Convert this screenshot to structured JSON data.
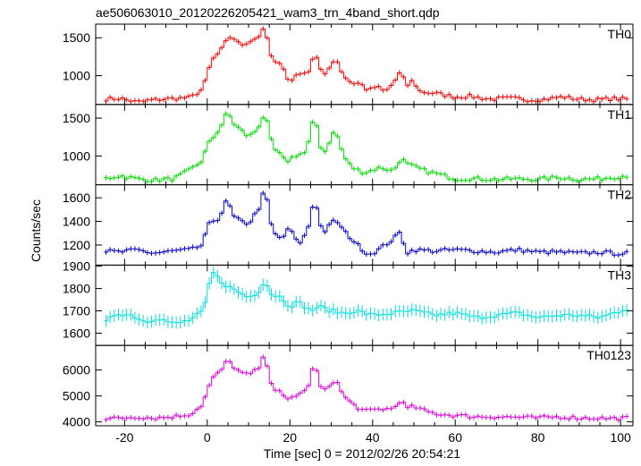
{
  "chart_data": {
    "type": "line",
    "title": "ae506063010_20120226205421_wam3_trn_4band_short.qdp",
    "xlabel": "Time [sec] 0 = 2012/02/26 20:54:21",
    "ylabel": "Counts/sec",
    "xlim": [
      -27,
      103
    ],
    "x_ticks": [
      -20,
      0,
      20,
      40,
      60,
      80,
      100
    ],
    "bin_width": 1,
    "panels": [
      {
        "name": "TH0",
        "color": "#ff0000",
        "ylim": [
          620,
          1680
        ],
        "y_ticks": [
          1000,
          1500
        ],
        "anchors": [
          [
            -25,
            690
          ],
          [
            -21,
            700
          ],
          [
            -17,
            650
          ],
          [
            -13,
            680
          ],
          [
            -8,
            700
          ],
          [
            -4,
            710
          ],
          [
            -1,
            830
          ],
          [
            0,
            1000
          ],
          [
            1,
            1200
          ],
          [
            2,
            1250
          ],
          [
            4,
            1380
          ],
          [
            5,
            1500
          ],
          [
            6,
            1520
          ],
          [
            8,
            1400
          ],
          [
            10,
            1450
          ],
          [
            12,
            1500
          ],
          [
            13,
            1550
          ],
          [
            14,
            1640
          ],
          [
            15,
            1350
          ],
          [
            16,
            1150
          ],
          [
            18,
            1200
          ],
          [
            19,
            1000
          ],
          [
            20,
            900
          ],
          [
            22,
            1050
          ],
          [
            24,
            1000
          ],
          [
            25,
            1150
          ],
          [
            26,
            1300
          ],
          [
            27,
            1200
          ],
          [
            28,
            950
          ],
          [
            30,
            1150
          ],
          [
            31,
            1250
          ],
          [
            33,
            1000
          ],
          [
            35,
            900
          ],
          [
            37,
            900
          ],
          [
            39,
            800
          ],
          [
            41,
            860
          ],
          [
            43,
            780
          ],
          [
            45,
            900
          ],
          [
            47,
            1070
          ],
          [
            48,
            850
          ],
          [
            50,
            950
          ],
          [
            51,
            800
          ],
          [
            53,
            780
          ],
          [
            56,
            760
          ],
          [
            60,
            720
          ],
          [
            64,
            730
          ],
          [
            68,
            690
          ],
          [
            72,
            700
          ],
          [
            75,
            700
          ],
          [
            78,
            680
          ],
          [
            82,
            690
          ],
          [
            86,
            720
          ],
          [
            90,
            690
          ],
          [
            95,
            680
          ],
          [
            98,
            700
          ],
          [
            101,
            690
          ]
        ],
        "bins": []
      },
      {
        "name": "TH1",
        "color": "#00dd00",
        "ylim": [
          620,
          1680
        ],
        "y_ticks": [
          1000,
          1500
        ],
        "anchors": [
          [
            -25,
            700
          ],
          [
            -21,
            740
          ],
          [
            -17,
            700
          ],
          [
            -13,
            680
          ],
          [
            -8,
            700
          ],
          [
            -4,
            820
          ],
          [
            -1,
            950
          ],
          [
            0,
            1150
          ],
          [
            1,
            1200
          ],
          [
            2,
            1300
          ],
          [
            3,
            1350
          ],
          [
            5,
            1600
          ],
          [
            6,
            1450
          ],
          [
            8,
            1350
          ],
          [
            10,
            1250
          ],
          [
            12,
            1350
          ],
          [
            13,
            1450
          ],
          [
            14,
            1580
          ],
          [
            15,
            1300
          ],
          [
            16,
            1100
          ],
          [
            18,
            1000
          ],
          [
            19,
            920
          ],
          [
            21,
            1000
          ],
          [
            24,
            1050
          ],
          [
            25,
            1300
          ],
          [
            26,
            1550
          ],
          [
            27,
            1250
          ],
          [
            28,
            1000
          ],
          [
            30,
            1250
          ],
          [
            31,
            1350
          ],
          [
            33,
            1000
          ],
          [
            35,
            850
          ],
          [
            38,
            780
          ],
          [
            42,
            850
          ],
          [
            45,
            800
          ],
          [
            47,
            980
          ],
          [
            48,
            900
          ],
          [
            50,
            860
          ],
          [
            53,
            800
          ],
          [
            56,
            760
          ],
          [
            60,
            700
          ],
          [
            65,
            700
          ],
          [
            70,
            690
          ],
          [
            75,
            700
          ],
          [
            80,
            690
          ],
          [
            85,
            720
          ],
          [
            90,
            690
          ],
          [
            95,
            700
          ],
          [
            98,
            720
          ],
          [
            101,
            740
          ]
        ],
        "bins": []
      },
      {
        "name": "TH2",
        "color": "#0000cc",
        "ylim": [
          1030,
          1710
        ],
        "y_ticks": [
          1200,
          1400,
          1600
        ],
        "anchors": [
          [
            -25,
            1150
          ],
          [
            -21,
            1140
          ],
          [
            -17,
            1160
          ],
          [
            -13,
            1130
          ],
          [
            -8,
            1150
          ],
          [
            -4,
            1160
          ],
          [
            -1,
            1200
          ],
          [
            0,
            1350
          ],
          [
            1,
            1400
          ],
          [
            3,
            1430
          ],
          [
            4,
            1520
          ],
          [
            5,
            1600
          ],
          [
            6,
            1450
          ],
          [
            8,
            1400
          ],
          [
            10,
            1380
          ],
          [
            12,
            1480
          ],
          [
            13,
            1550
          ],
          [
            14,
            1700
          ],
          [
            15,
            1450
          ],
          [
            16,
            1300
          ],
          [
            18,
            1250
          ],
          [
            20,
            1350
          ],
          [
            22,
            1200
          ],
          [
            24,
            1300
          ],
          [
            25,
            1420
          ],
          [
            26,
            1630
          ],
          [
            27,
            1420
          ],
          [
            28,
            1300
          ],
          [
            30,
            1380
          ],
          [
            31,
            1420
          ],
          [
            33,
            1320
          ],
          [
            35,
            1250
          ],
          [
            37,
            1180
          ],
          [
            39,
            1120
          ],
          [
            41,
            1150
          ],
          [
            43,
            1200
          ],
          [
            45,
            1250
          ],
          [
            47,
            1320
          ],
          [
            48,
            1130
          ],
          [
            50,
            1160
          ],
          [
            55,
            1150
          ],
          [
            60,
            1160
          ],
          [
            65,
            1150
          ],
          [
            70,
            1140
          ],
          [
            75,
            1160
          ],
          [
            80,
            1140
          ],
          [
            85,
            1140
          ],
          [
            90,
            1130
          ],
          [
            95,
            1140
          ],
          [
            98,
            1130
          ],
          [
            101,
            1130
          ]
        ],
        "bins": []
      },
      {
        "name": "TH3",
        "color": "#00e0e0",
        "ylim": [
          1545,
          1905
        ],
        "y_ticks": [
          1600,
          1700,
          1800,
          1900
        ],
        "anchors": [
          [
            -25,
            1640
          ],
          [
            -22,
            1690
          ],
          [
            -18,
            1680
          ],
          [
            -15,
            1650
          ],
          [
            -12,
            1670
          ],
          [
            -8,
            1640
          ],
          [
            -4,
            1660
          ],
          [
            -1,
            1700
          ],
          [
            0,
            1760
          ],
          [
            1,
            1880
          ],
          [
            2,
            1860
          ],
          [
            4,
            1820
          ],
          [
            6,
            1800
          ],
          [
            8,
            1780
          ],
          [
            10,
            1760
          ],
          [
            12,
            1780
          ],
          [
            13,
            1800
          ],
          [
            14,
            1850
          ],
          [
            15,
            1780
          ],
          [
            18,
            1760
          ],
          [
            20,
            1720
          ],
          [
            22,
            1740
          ],
          [
            25,
            1700
          ],
          [
            27,
            1720
          ],
          [
            30,
            1700
          ],
          [
            33,
            1690
          ],
          [
            36,
            1700
          ],
          [
            40,
            1680
          ],
          [
            45,
            1690
          ],
          [
            50,
            1700
          ],
          [
            55,
            1680
          ],
          [
            60,
            1690
          ],
          [
            65,
            1670
          ],
          [
            70,
            1680
          ],
          [
            75,
            1690
          ],
          [
            80,
            1670
          ],
          [
            85,
            1680
          ],
          [
            90,
            1680
          ],
          [
            95,
            1670
          ],
          [
            100,
            1700
          ],
          [
            101,
            1710
          ]
        ],
        "bins": []
      },
      {
        "name": "TH0123",
        "color": "#dd00dd",
        "ylim": [
          3850,
          6950
        ],
        "y_ticks": [
          4000,
          5000,
          6000
        ],
        "anchors": [
          [
            -25,
            4100
          ],
          [
            -21,
            4150
          ],
          [
            -17,
            4200
          ],
          [
            -13,
            4150
          ],
          [
            -8,
            4200
          ],
          [
            -4,
            4300
          ],
          [
            -1,
            4700
          ],
          [
            0,
            5200
          ],
          [
            1,
            5600
          ],
          [
            2,
            5800
          ],
          [
            3,
            5900
          ],
          [
            5,
            6400
          ],
          [
            6,
            6200
          ],
          [
            8,
            5900
          ],
          [
            10,
            5800
          ],
          [
            12,
            6000
          ],
          [
            13,
            6200
          ],
          [
            14,
            6650
          ],
          [
            15,
            5800
          ],
          [
            16,
            5300
          ],
          [
            18,
            5100
          ],
          [
            19,
            4800
          ],
          [
            21,
            5000
          ],
          [
            24,
            5200
          ],
          [
            25,
            5700
          ],
          [
            26,
            6300
          ],
          [
            27,
            5600
          ],
          [
            28,
            5100
          ],
          [
            30,
            5500
          ],
          [
            31,
            5650
          ],
          [
            33,
            5000
          ],
          [
            35,
            4700
          ],
          [
            38,
            4400
          ],
          [
            42,
            4500
          ],
          [
            45,
            4500
          ],
          [
            47,
            4900
          ],
          [
            48,
            4500
          ],
          [
            50,
            4600
          ],
          [
            53,
            4400
          ],
          [
            56,
            4300
          ],
          [
            60,
            4250
          ],
          [
            65,
            4200
          ],
          [
            70,
            4200
          ],
          [
            75,
            4180
          ],
          [
            80,
            4150
          ],
          [
            85,
            4200
          ],
          [
            90,
            4150
          ],
          [
            95,
            4150
          ],
          [
            98,
            4130
          ],
          [
            101,
            4150
          ]
        ],
        "bins": []
      }
    ]
  }
}
